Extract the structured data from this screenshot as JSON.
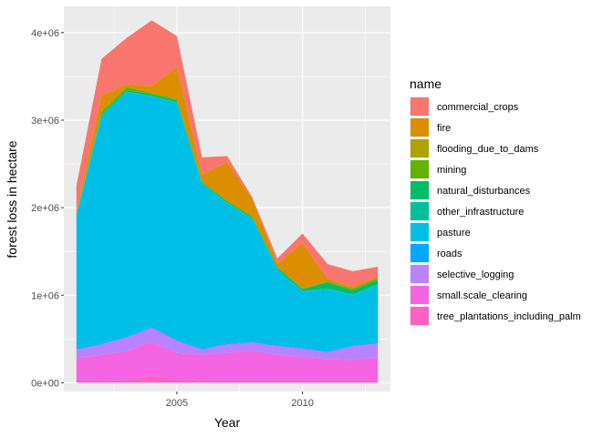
{
  "chart_data": {
    "type": "area",
    "stacked": true,
    "title": "",
    "xlabel": "Year",
    "ylabel": "forest loss in hectare",
    "x": [
      2001,
      2002,
      2003,
      2004,
      2005,
      2006,
      2007,
      2008,
      2009,
      2010,
      2011,
      2012,
      2013
    ],
    "xlim": [
      2000.5,
      2013.5
    ],
    "ylim": [
      -100000,
      4300000
    ],
    "x_ticks": [
      2005,
      2010
    ],
    "x_tick_labels": [
      "2005",
      "2010"
    ],
    "y_ticks": [
      0,
      1000000,
      2000000,
      3000000,
      4000000
    ],
    "y_tick_labels": [
      "0e+00",
      "1e+06",
      "2e+06",
      "3e+06",
      "4e+06"
    ],
    "grid": true,
    "legend_position": "right",
    "legend_title": "name",
    "series": [
      {
        "name": "tree_plantations_including_palm",
        "color": "#FF61C3",
        "values": [
          20000,
          20000,
          30000,
          90000,
          40000,
          20000,
          20000,
          20000,
          20000,
          20000,
          20000,
          20000,
          20000
        ]
      },
      {
        "name": "small.scale_clearing",
        "color": "#F564E3",
        "values": [
          260000,
          300000,
          330000,
          380000,
          300000,
          300000,
          320000,
          350000,
          300000,
          270000,
          250000,
          240000,
          270000
        ]
      },
      {
        "name": "selective_logging",
        "color": "#B983FF",
        "values": [
          100000,
          120000,
          160000,
          160000,
          140000,
          60000,
          100000,
          90000,
          100000,
          100000,
          80000,
          160000,
          160000
        ]
      },
      {
        "name": "roads",
        "color": "#00A9FF",
        "values": [
          10000,
          10000,
          10000,
          10000,
          10000,
          10000,
          10000,
          10000,
          10000,
          10000,
          10000,
          10000,
          10000
        ]
      },
      {
        "name": "pasture",
        "color": "#00BFE7",
        "values": [
          1520000,
          2600000,
          2790000,
          2630000,
          2710000,
          1880000,
          1600000,
          1400000,
          860000,
          640000,
          710000,
          570000,
          660000
        ]
      },
      {
        "name": "other_infrastructure",
        "color": "#00C19A",
        "values": [
          5000,
          5000,
          5000,
          5000,
          5000,
          5000,
          5000,
          5000,
          5000,
          5000,
          5000,
          5000,
          5000
        ]
      },
      {
        "name": "natural_disturbances",
        "color": "#00BE67",
        "values": [
          10000,
          15000,
          20000,
          20000,
          20000,
          15000,
          15000,
          15000,
          20000,
          25000,
          70000,
          50000,
          50000
        ]
      },
      {
        "name": "mining",
        "color": "#64B200",
        "values": [
          5000,
          30000,
          35000,
          15000,
          15000,
          5000,
          10000,
          10000,
          5000,
          5000,
          10000,
          20000,
          20000
        ]
      },
      {
        "name": "flooding_due_to_dams",
        "color": "#AEA200",
        "values": [
          0,
          0,
          0,
          0,
          0,
          0,
          0,
          0,
          0,
          0,
          0,
          0,
          0
        ]
      },
      {
        "name": "fire",
        "color": "#DB8E00",
        "values": [
          20000,
          180000,
          30000,
          80000,
          370000,
          80000,
          440000,
          200000,
          40000,
          520000,
          30000,
          20000,
          20000
        ]
      },
      {
        "name": "commercial_crops",
        "color": "#F8766D",
        "values": [
          300000,
          420000,
          530000,
          750000,
          350000,
          200000,
          70000,
          20000,
          60000,
          110000,
          170000,
          180000,
          110000
        ]
      }
    ]
  }
}
